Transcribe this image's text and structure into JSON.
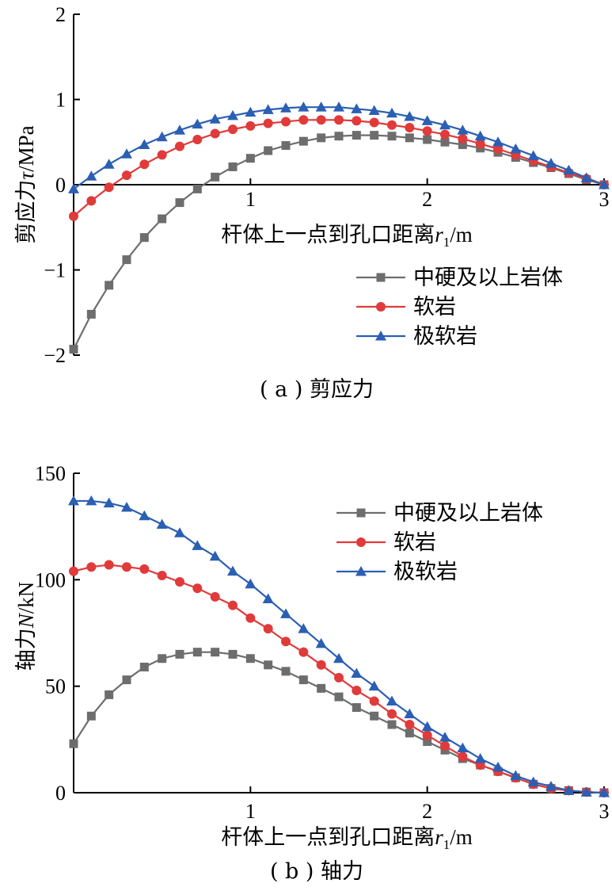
{
  "chart_data": [
    {
      "type": "line",
      "caption": "( a ) 剪应力",
      "xlabel_main": "杆体上一点到孔口距离",
      "xlabel_var": "r",
      "xlabel_sub": "1",
      "xlabel_unit": "/m",
      "ylabel_main": "剪应力",
      "ylabel_var": "τ",
      "ylabel_unit": "/MPa",
      "xlim": [
        0,
        3
      ],
      "ylim": [
        -2,
        2
      ],
      "xticks": [
        "1",
        "2",
        "3"
      ],
      "yticks": [
        "2",
        "1",
        "0",
        "−1",
        "−2"
      ],
      "ytick_values": [
        2,
        1,
        0,
        -1,
        -2
      ],
      "legend_position": "center-right",
      "series": [
        {
          "name": "中硬及以上岩体",
          "color": "#6d6d6d",
          "marker": "square",
          "x": [
            0,
            0.1,
            0.2,
            0.3,
            0.4,
            0.5,
            0.6,
            0.7,
            0.8,
            0.9,
            1.0,
            1.1,
            1.2,
            1.3,
            1.4,
            1.5,
            1.6,
            1.7,
            1.8,
            1.9,
            2.0,
            2.1,
            2.2,
            2.3,
            2.4,
            2.5,
            2.6,
            2.7,
            2.8,
            2.9,
            3.0
          ],
          "y": [
            -1.93,
            -1.52,
            -1.18,
            -0.88,
            -0.62,
            -0.4,
            -0.21,
            -0.05,
            0.09,
            0.21,
            0.31,
            0.4,
            0.46,
            0.51,
            0.55,
            0.57,
            0.58,
            0.58,
            0.57,
            0.55,
            0.53,
            0.5,
            0.47,
            0.43,
            0.38,
            0.32,
            0.26,
            0.2,
            0.13,
            0.06,
            0.0
          ]
        },
        {
          "name": "软岩",
          "color": "#e03a3a",
          "marker": "circle",
          "x": [
            0,
            0.1,
            0.2,
            0.3,
            0.4,
            0.5,
            0.6,
            0.7,
            0.8,
            0.9,
            1.0,
            1.1,
            1.2,
            1.3,
            1.4,
            1.5,
            1.6,
            1.7,
            1.8,
            1.9,
            2.0,
            2.1,
            2.2,
            2.3,
            2.4,
            2.5,
            2.6,
            2.7,
            2.8,
            2.9,
            3.0
          ],
          "y": [
            -0.37,
            -0.19,
            -0.03,
            0.11,
            0.24,
            0.35,
            0.45,
            0.53,
            0.6,
            0.65,
            0.69,
            0.72,
            0.74,
            0.76,
            0.76,
            0.76,
            0.75,
            0.73,
            0.7,
            0.67,
            0.63,
            0.59,
            0.54,
            0.48,
            0.42,
            0.35,
            0.28,
            0.21,
            0.14,
            0.07,
            0.0
          ]
        },
        {
          "name": "极软岩",
          "color": "#2b5fb4",
          "marker": "triangle",
          "x": [
            0,
            0.1,
            0.2,
            0.3,
            0.4,
            0.5,
            0.6,
            0.7,
            0.8,
            0.9,
            1.0,
            1.1,
            1.2,
            1.3,
            1.4,
            1.5,
            1.6,
            1.7,
            1.8,
            1.9,
            2.0,
            2.1,
            2.2,
            2.3,
            2.4,
            2.5,
            2.6,
            2.7,
            2.8,
            2.9,
            3.0
          ],
          "y": [
            -0.05,
            0.1,
            0.24,
            0.36,
            0.47,
            0.56,
            0.64,
            0.71,
            0.77,
            0.81,
            0.85,
            0.88,
            0.9,
            0.91,
            0.91,
            0.91,
            0.89,
            0.87,
            0.84,
            0.8,
            0.75,
            0.7,
            0.64,
            0.57,
            0.5,
            0.42,
            0.34,
            0.25,
            0.17,
            0.08,
            0.0
          ]
        }
      ]
    },
    {
      "type": "line",
      "caption": "( b ) 轴力",
      "xlabel_main": "杆体上一点到孔口距离",
      "xlabel_var": "r",
      "xlabel_sub": "1",
      "xlabel_unit": "/m",
      "ylabel_main": "轴力",
      "ylabel_var": "N",
      "ylabel_unit": "/kN",
      "xlim": [
        0,
        3
      ],
      "ylim": [
        0,
        150
      ],
      "xticks": [
        "1",
        "2",
        "3"
      ],
      "yticks": [
        "150",
        "100",
        "50",
        "0"
      ],
      "ytick_values": [
        150,
        100,
        50,
        0
      ],
      "legend_position": "top-right",
      "series": [
        {
          "name": "中硬及以上岩体",
          "color": "#6d6d6d",
          "marker": "square",
          "x": [
            0,
            0.1,
            0.2,
            0.3,
            0.4,
            0.5,
            0.6,
            0.7,
            0.8,
            0.9,
            1.0,
            1.1,
            1.2,
            1.3,
            1.4,
            1.5,
            1.6,
            1.7,
            1.8,
            1.9,
            2.0,
            2.1,
            2.2,
            2.3,
            2.4,
            2.5,
            2.6,
            2.7,
            2.8,
            2.9,
            3.0
          ],
          "y": [
            23,
            36,
            46,
            53,
            59,
            63,
            65,
            66,
            66,
            65,
            63,
            60,
            57,
            53,
            49,
            45,
            40,
            36,
            32,
            28,
            24,
            20,
            16,
            13,
            10,
            7,
            4,
            2,
            1,
            0.3,
            0
          ]
        },
        {
          "name": "软岩",
          "color": "#e03a3a",
          "marker": "circle",
          "x": [
            0,
            0.1,
            0.2,
            0.3,
            0.4,
            0.5,
            0.6,
            0.7,
            0.8,
            0.9,
            1.0,
            1.1,
            1.2,
            1.3,
            1.4,
            1.5,
            1.6,
            1.7,
            1.8,
            1.9,
            2.0,
            2.1,
            2.2,
            2.3,
            2.4,
            2.5,
            2.6,
            2.7,
            2.8,
            2.9,
            3.0
          ],
          "y": [
            104,
            106,
            107,
            106,
            105,
            102,
            99,
            96,
            92,
            88,
            82,
            77,
            71,
            66,
            60,
            54,
            48,
            43,
            37,
            32,
            27,
            22,
            17,
            13,
            10,
            7,
            4,
            2,
            1,
            0.3,
            0
          ]
        },
        {
          "name": "极软岩",
          "color": "#2b5fb4",
          "marker": "triangle",
          "x": [
            0,
            0.1,
            0.2,
            0.3,
            0.4,
            0.5,
            0.6,
            0.7,
            0.8,
            0.9,
            1.0,
            1.1,
            1.2,
            1.3,
            1.4,
            1.5,
            1.6,
            1.7,
            1.8,
            1.9,
            2.0,
            2.1,
            2.2,
            2.3,
            2.4,
            2.5,
            2.6,
            2.7,
            2.8,
            2.9,
            3.0
          ],
          "y": [
            137,
            137,
            136,
            134,
            130,
            126,
            122,
            116,
            111,
            104,
            98,
            91,
            84,
            77,
            70,
            63,
            56,
            50,
            43,
            37,
            31,
            26,
            21,
            16,
            12,
            8,
            5,
            3,
            1,
            0.3,
            0
          ]
        }
      ]
    }
  ]
}
